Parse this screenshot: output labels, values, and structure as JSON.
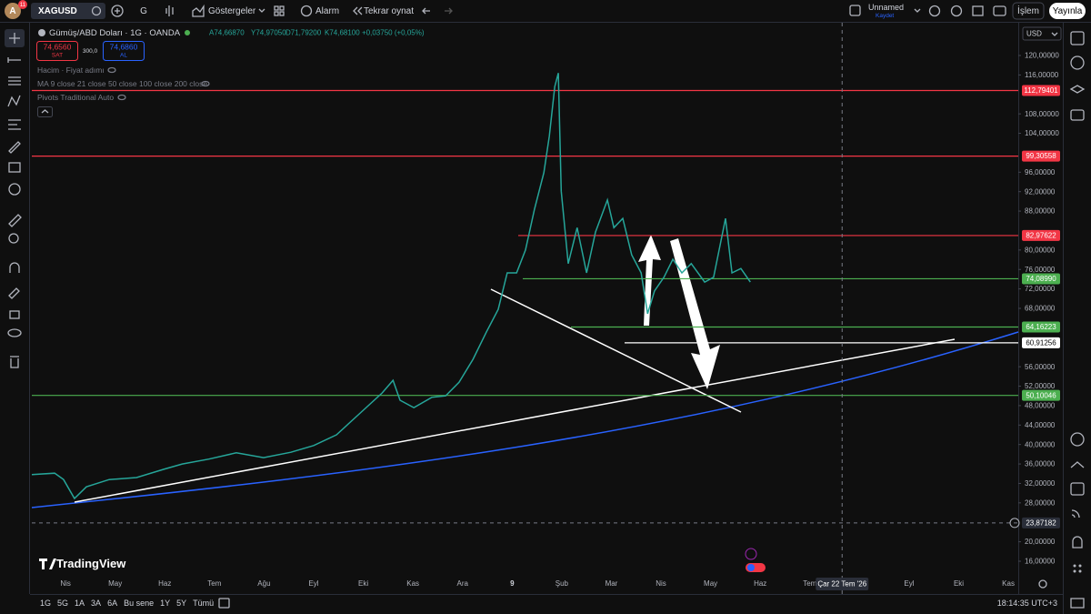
{
  "toolbar": {
    "avatar": "A",
    "notifications": "11",
    "symbol": "XAGUSD",
    "interval": "G",
    "indicators": "Göstergeler",
    "alert": "Alarm",
    "replay": "Tekrar oynat",
    "layout_name": "Unnamed",
    "layout_status": "Kaydet",
    "trade": "İşlem",
    "publish": "Yayınla"
  },
  "legend": {
    "title": "Gümüş/ABD Doları · 1G · OANDA",
    "open": "A74,66870",
    "high": "Y74,97050",
    "low": "D71,79200",
    "close": "K74,68100",
    "change": "+0,03750 (+0,05%)",
    "sell_price": "74,6560",
    "sell": "SAT",
    "spread": "300,0",
    "buy_price": "74,6860",
    "buy": "AL",
    "studies": [
      "Hacim · Fiyat adımı",
      "MA 9 close 21 close 50 close 100 close 200 close",
      "Pivots Traditional Auto"
    ]
  },
  "currency": "USD",
  "branding": "TradingView",
  "chart_data": {
    "type": "line",
    "color": "#26a69a",
    "x": [
      -0.68,
      -0.22,
      -0.04,
      0.18,
      0.42,
      0.88,
      1.43,
      1.98,
      2.35,
      2.89,
      3.44,
      3.99,
      4.54,
      5.0,
      5.46,
      5.92,
      6.38,
      6.6,
      6.74,
      7.02,
      7.38,
      7.66,
      7.93,
      8.21,
      8.48,
      8.72,
      8.9,
      9.09,
      9.27,
      9.45,
      9.64,
      9.75,
      9.86,
      9.93,
      9.99,
      10.13,
      10.31,
      10.5,
      10.68,
      10.92,
      11.05,
      11.23,
      11.41,
      11.6,
      11.73,
      11.87,
      12.06,
      12.24,
      12.42,
      12.61,
      12.88,
      13.06,
      13.3,
      13.43,
      13.61,
      13.8
    ],
    "values": [
      33.8,
      34.1,
      32.8,
      28.9,
      31.3,
      32.8,
      33.2,
      34.9,
      36.0,
      37.0,
      38.3,
      37.3,
      38.4,
      39.8,
      42.0,
      46.3,
      50.6,
      53.2,
      49.1,
      47.6,
      49.7,
      50.0,
      52.8,
      57.5,
      63.1,
      67.8,
      75.3,
      75.3,
      80.0,
      88.4,
      95.9,
      103.4,
      113.6,
      116.4,
      92.1,
      77.2,
      84.6,
      75.3,
      83.7,
      90.3,
      84.6,
      86.5,
      79.0,
      75.3,
      66.9,
      71.6,
      74.4,
      78.1,
      75.3,
      77.2,
      73.4,
      74.4,
      86.5,
      75.3,
      76.2,
      73.4
    ],
    "xlim": [
      -0.68,
      19.2
    ],
    "ylim": [
      13.94,
      125.8
    ],
    "xticks": [
      {
        "value": 0,
        "label": "Nis"
      },
      {
        "value": 1,
        "label": "May"
      },
      {
        "value": 2,
        "label": "Haz"
      },
      {
        "value": 3,
        "label": "Tem"
      },
      {
        "value": 4,
        "label": "Ağu"
      },
      {
        "value": 5,
        "label": "Eyl"
      },
      {
        "value": 6,
        "label": "Eki"
      },
      {
        "value": 7,
        "label": "Kas"
      },
      {
        "value": 8,
        "label": "Ara"
      },
      9.0,
      {
        "value": 10,
        "label": "Şub"
      },
      {
        "value": 11,
        "label": "Mar"
      },
      {
        "value": 12,
        "label": "Nis"
      },
      {
        "value": 13,
        "label": "May"
      },
      {
        "value": 14,
        "label": "Haz"
      },
      {
        "value": 15,
        "label": "Tem"
      },
      {
        "value": 17,
        "label": "Eyl"
      },
      {
        "value": 18,
        "label": "Eki"
      },
      {
        "value": 19,
        "label": "Kas"
      }
    ],
    "yticks": [
      {
        "value": 16,
        "label": "16,00000"
      },
      {
        "value": 20,
        "label": "20,00000"
      },
      {
        "value": 28,
        "label": "28,00000"
      },
      {
        "value": 32,
        "label": "32,00000"
      },
      {
        "value": 36,
        "label": "36,00000"
      },
      {
        "value": 40,
        "label": "40,00000"
      },
      {
        "value": 44,
        "label": "44,00000"
      },
      {
        "value": 48,
        "label": "48,00000"
      },
      {
        "value": 52,
        "label": "52,00000"
      },
      {
        "value": 56,
        "label": "56,00000"
      },
      {
        "value": 68,
        "label": "68,00000"
      },
      {
        "value": 72,
        "label": "72,00000"
      },
      {
        "value": 76,
        "label": "76,00000"
      },
      {
        "value": 80,
        "label": "80,00000"
      },
      {
        "value": 88,
        "label": "88,00000"
      },
      {
        "value": 92,
        "label": "92,00000"
      },
      {
        "value": 96,
        "label": "96,00000"
      },
      {
        "value": 104,
        "label": "104,00000"
      },
      {
        "value": 108,
        "label": "108,00000"
      },
      {
        "value": 116,
        "label": "116,00000"
      },
      {
        "value": 120,
        "label": "120,00000"
      }
    ],
    "levels": [
      {
        "value": 112.79401,
        "label": "112,79401",
        "color": "#f23645"
      },
      {
        "value": 99.30558,
        "label": "99,30558",
        "color": "#f23645"
      },
      {
        "value": 82.97622,
        "label": "82,97622",
        "color": "#f23645"
      },
      {
        "value": 74.0899,
        "label": "74,08990",
        "color": "#4caf50"
      },
      {
        "value": 64.16223,
        "label": "64,16223",
        "color": "#4caf50"
      },
      {
        "value": 60.91256,
        "label": "60,91256",
        "color": "#ffffff"
      },
      {
        "value": 50.10046,
        "label": "50,10046",
        "color": "#4caf50"
      }
    ],
    "crosshair": {
      "x": 15.65,
      "x_label": "Çar 22 Tem '26",
      "y": 23.87182,
      "y_label": "23,87182"
    }
  },
  "bottom_bar": {
    "ranges": [
      "1G",
      "5G",
      "1A",
      "3A",
      "6A",
      "Bu sene",
      "1Y",
      "5Y",
      "Tümü"
    ],
    "clock": "18:14:35 UTC+3"
  }
}
